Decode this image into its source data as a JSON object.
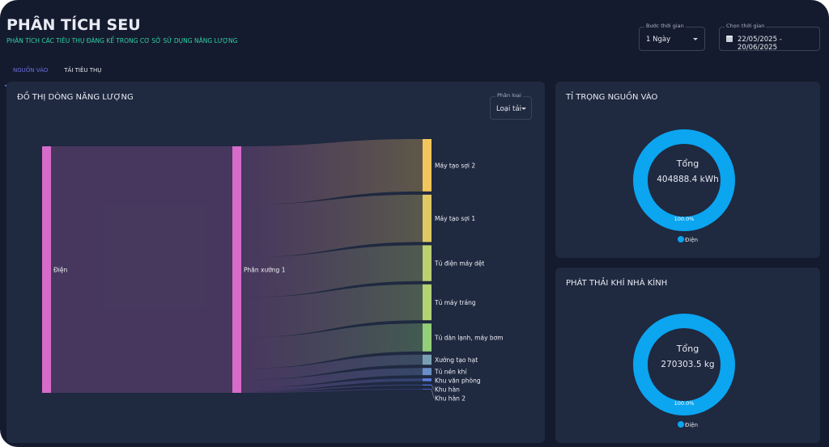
{
  "header": {
    "title": "PHÂN TÍCH SEU",
    "subtitle": "PHÂN TÍCH CÁC TIÊU THỤ ĐÁNG KỂ TRONG CƠ SỞ SỬ DỤNG NĂNG LƯỢNG"
  },
  "filters": {
    "step_label": "Bước thời gian",
    "step_value": "1 Ngày",
    "range_label": "Chọn thời gian",
    "range_value": "22/05/2025 - 20/06/2025"
  },
  "tabs": [
    {
      "label": "NGUỒN VÀO",
      "active": true
    },
    {
      "label": "TẢI TIÊU THỤ",
      "active": false
    }
  ],
  "sankey": {
    "title": "ĐỒ THỊ DÒNG NĂNG LƯỢNG",
    "category_label": "Phân loại",
    "category_value": "Loại tải",
    "source": {
      "name": "Điện",
      "color": "#d66bc9"
    },
    "middle": {
      "name": "Phân xưởng 1",
      "color": "#d66bc9"
    },
    "targets": [
      {
        "name": "Máy tạo sợi 2",
        "value": 95800,
        "color": "#f2c65a"
      },
      {
        "name": "Máy tạo sợi 1",
        "value": 86600,
        "color": "#dfc964"
      },
      {
        "name": "Tủ điện máy dệt",
        "value": 65600,
        "color": "#bcd070"
      },
      {
        "name": "Tủ máy tráng",
        "value": 65600,
        "color": "#b3d274"
      },
      {
        "name": "Tủ dàn lạnh, máy bơm",
        "value": 51200,
        "color": "#93cf78"
      },
      {
        "name": "Xưởng tạo hạt",
        "value": 18400,
        "color": "#7a9fb3"
      },
      {
        "name": "Tủ nén khí",
        "value": 13100,
        "color": "#6a8fc8"
      },
      {
        "name": "Khu văn phòng",
        "value": 5200,
        "color": "#5a7ee0"
      },
      {
        "name": "Khu hàn",
        "value": 2000,
        "color": "#4d6fd8"
      },
      {
        "name": "Khu hàn 2",
        "value": 1300,
        "color": "#4a60c8"
      }
    ]
  },
  "input_share": {
    "title": "TỈ TRỌNG NGUỒN VÀO",
    "total_label": "Tổng",
    "total_value": "404888.4 kWh",
    "percent": "100.0%",
    "share": 100,
    "legend": "Điện",
    "color": "#0ba5f0"
  },
  "emissions": {
    "title": "PHÁT THẢI KHÍ NHÀ KÍNH",
    "total_label": "Tổng",
    "total_value": "270303.5 kg",
    "percent": "100.0%",
    "share": 100,
    "legend": "Điện",
    "color": "#0ba5f0"
  }
}
